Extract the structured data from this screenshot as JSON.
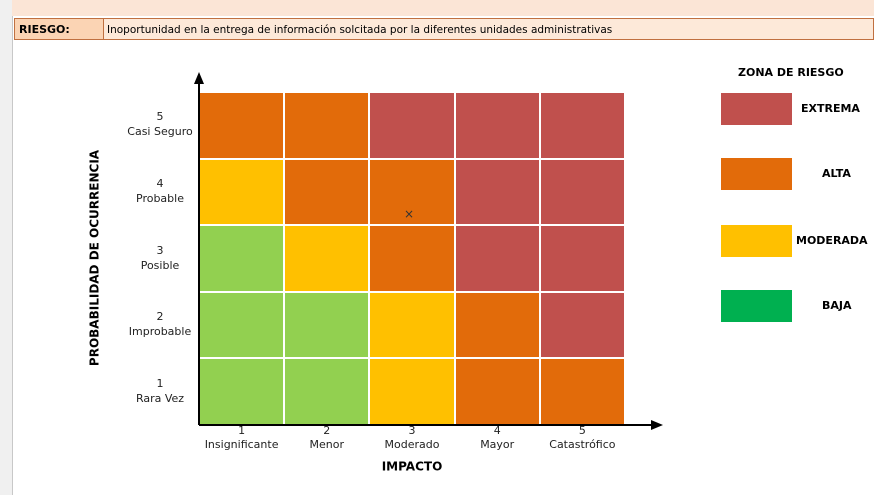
{
  "header": {
    "label": "RIESGO:",
    "description": "Inoportunidad  en la entrega de información solcitada por la diferentes unidades administrativas"
  },
  "matrix": {
    "y_axis_title": "PROBABILIDAD DE OCURRENCIA",
    "x_axis_title": "IMPACTO",
    "rows": [
      {
        "number": "5",
        "label": "Casi Seguro",
        "cells": [
          "#e26b0a",
          "#e26b0a",
          "#c0504d",
          "#c0504d",
          "#c0504d"
        ]
      },
      {
        "number": "4",
        "label": "Probable",
        "cells": [
          "#ffc000",
          "#e26b0a",
          "#e26b0a",
          "#c0504d",
          "#c0504d"
        ]
      },
      {
        "number": "3",
        "label": "Posible",
        "cells": [
          "#92d050",
          "#ffc000",
          "#e26b0a",
          "#c0504d",
          "#c0504d"
        ]
      },
      {
        "number": "2",
        "label": "Improbable",
        "cells": [
          "#92d050",
          "#92d050",
          "#ffc000",
          "#e26b0a",
          "#c0504d"
        ]
      },
      {
        "number": "1",
        "label": "Rara Vez",
        "cells": [
          "#92d050",
          "#92d050",
          "#ffc000",
          "#e26b0a",
          "#e26b0a"
        ]
      }
    ],
    "columns": [
      {
        "number": "1",
        "label": "Insignificante"
      },
      {
        "number": "2",
        "label": "Menor"
      },
      {
        "number": "3",
        "label": "Moderado"
      },
      {
        "number": "4",
        "label": "Mayor"
      },
      {
        "number": "5",
        "label": "Catastrófico"
      }
    ],
    "marker": "×"
  },
  "legend": {
    "title": "ZONA DE RIESGO",
    "items": [
      {
        "label": "EXTREMA",
        "color": "#c0504d"
      },
      {
        "label": "ALTA",
        "color": "#e26b0a"
      },
      {
        "label": "MODERADA",
        "color": "#ffc000"
      },
      {
        "label": "BAJA",
        "color": "#00b050"
      }
    ]
  }
}
